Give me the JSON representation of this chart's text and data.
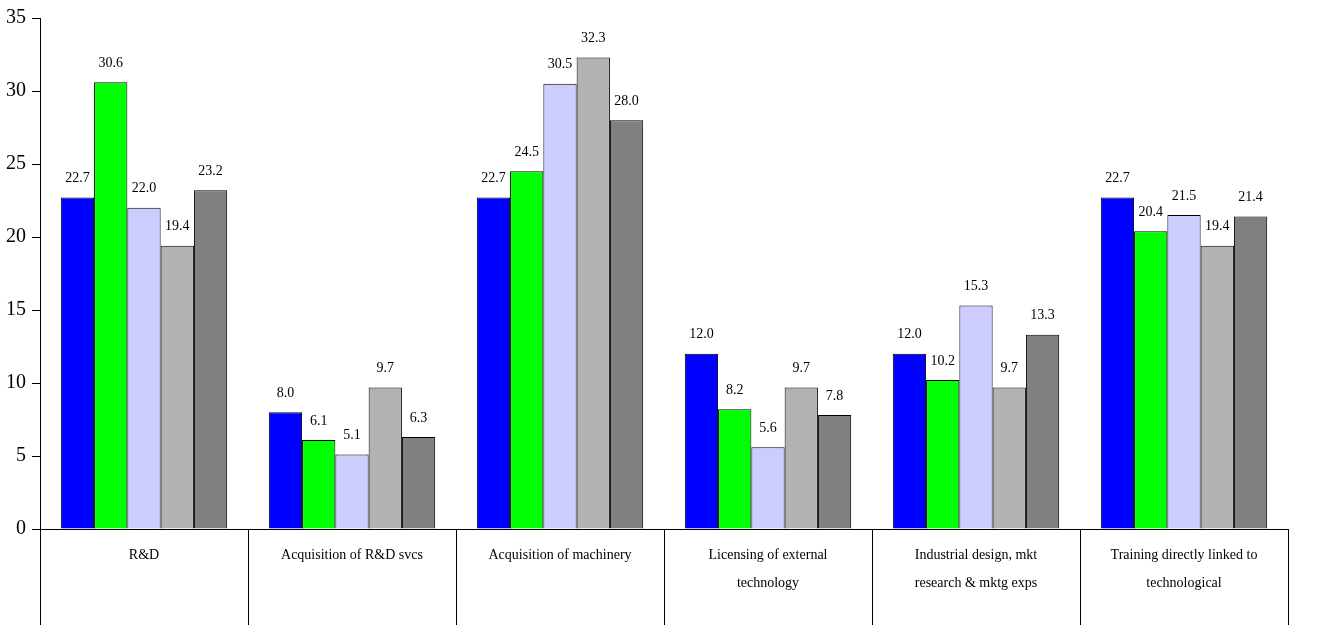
{
  "chart_data": {
    "type": "bar",
    "categories": [
      "R&D",
      "Acquisition of R&D svcs",
      "Acquisition of machinery",
      "Licensing of external technology",
      "Industrial design, mkt research & mktg exps",
      "Training directly linked to technological"
    ],
    "series": [
      {
        "color": "#0000ff",
        "values": [
          22.7,
          8.0,
          22.7,
          12.0,
          12.0,
          22.7
        ],
        "value_labels": [
          "22.7",
          "8.0",
          "22.7",
          "12.0",
          "12.0",
          "22.7"
        ]
      },
      {
        "color": "#00ff00",
        "values": [
          30.6,
          6.1,
          24.5,
          8.2,
          10.2,
          20.4
        ],
        "value_labels": [
          "30.6",
          "6.1",
          "24.5",
          "8.2",
          "10.2",
          "20.4"
        ]
      },
      {
        "color": "#ccccff",
        "values": [
          22.0,
          5.1,
          30.5,
          5.6,
          15.3,
          21.5
        ],
        "value_labels": [
          "22.0",
          "5.1",
          "30.5",
          "5.6",
          "15.3",
          "21.5"
        ]
      },
      {
        "color": "#b2b2b2",
        "values": [
          19.4,
          9.7,
          32.3,
          9.7,
          9.7,
          19.4
        ],
        "value_labels": [
          "19.4",
          "9.7",
          "32.3",
          "9.7",
          "9.7",
          "19.4"
        ]
      },
      {
        "color": "#808080",
        "values": [
          23.2,
          6.3,
          28.0,
          7.8,
          13.3,
          21.4
        ],
        "value_labels": [
          "23.2",
          "6.3",
          "28.0",
          "7.8",
          "13.3",
          "21.4"
        ]
      }
    ],
    "ylim": [
      0,
      35
    ],
    "yticks": [
      0,
      5,
      10,
      15,
      20,
      25,
      30,
      35
    ],
    "grid": false,
    "legend": false
  }
}
